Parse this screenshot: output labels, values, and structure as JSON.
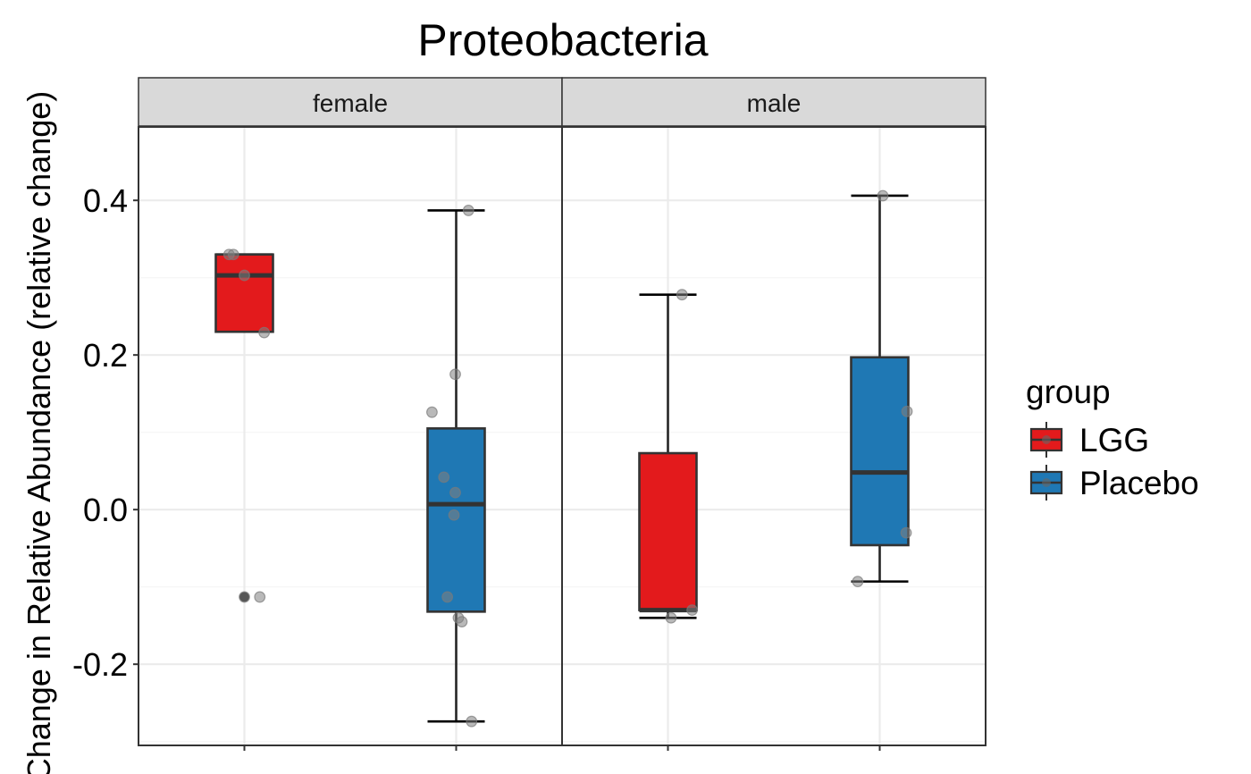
{
  "chart_data": {
    "type": "box",
    "title": "Proteobacteria",
    "ylabel": "Change in Relative Abundance (relative change)",
    "xlabel": "",
    "ylim": [
      -0.305,
      0.495
    ],
    "yticks": [
      0.4,
      0.2,
      0.0,
      -0.2
    ],
    "ytick_labels": [
      "0.4",
      "0.2",
      "0.0",
      "-0.2"
    ],
    "grid": true,
    "legend": {
      "title": "group",
      "position": "right",
      "entries": [
        {
          "label": "LGG",
          "color": "#e31a1c"
        },
        {
          "label": "Placebo",
          "color": "#1f78b4"
        }
      ]
    },
    "facets": [
      {
        "label": "female",
        "boxes": [
          {
            "group": "LGG",
            "color": "#e31a1c",
            "whisker_low": 0.23,
            "q1": 0.23,
            "median": 0.303,
            "q3": 0.33,
            "whisker_high": 0.33,
            "outliers": [
              -0.113
            ],
            "points": [
              0.33,
              0.33,
              0.303,
              0.229,
              -0.113,
              -0.113
            ],
            "jitter": [
              -0.35,
              -0.25,
              0.0,
              0.45,
              0.0,
              0.35
            ]
          },
          {
            "group": "Placebo",
            "color": "#1f78b4",
            "whisker_low": -0.274,
            "q1": -0.132,
            "median": 0.007,
            "q3": 0.105,
            "whisker_high": 0.387,
            "outliers": [],
            "points": [
              0.387,
              0.175,
              0.126,
              0.042,
              0.022,
              -0.007,
              -0.113,
              -0.14,
              -0.145,
              -0.274
            ],
            "jitter": [
              0.28,
              -0.02,
              -0.55,
              -0.28,
              -0.02,
              -0.05,
              -0.2,
              0.05,
              0.13,
              0.35
            ]
          }
        ]
      },
      {
        "label": "male",
        "boxes": [
          {
            "group": "LGG",
            "color": "#e31a1c",
            "whisker_low": -0.14,
            "q1": -0.13,
            "median": -0.13,
            "q3": 0.073,
            "whisker_high": 0.278,
            "outliers": [],
            "points": [
              0.278,
              -0.13,
              -0.14
            ],
            "jitter": [
              0.32,
              0.55,
              0.07
            ]
          },
          {
            "group": "Placebo",
            "color": "#1f78b4",
            "whisker_low": -0.093,
            "q1": -0.046,
            "median": 0.048,
            "q3": 0.197,
            "whisker_high": 0.406,
            "outliers": [],
            "points": [
              0.406,
              0.127,
              -0.03,
              -0.093
            ],
            "jitter": [
              0.07,
              0.62,
              0.6,
              -0.5
            ]
          }
        ]
      }
    ]
  }
}
